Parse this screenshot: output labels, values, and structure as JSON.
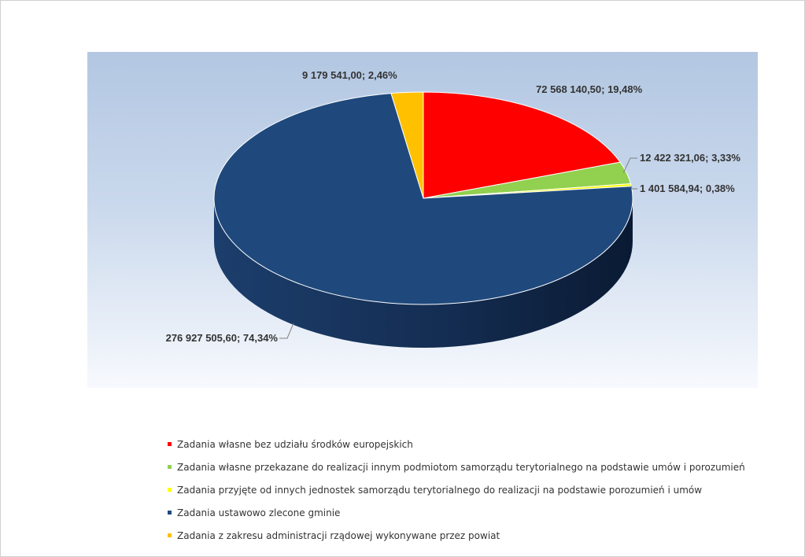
{
  "chart_data": {
    "type": "pie",
    "title": "",
    "style": "3d-pie",
    "legend_position": "bottom",
    "series": [
      {
        "name": "Zadania własne bez udziału środków europejskich",
        "value": 72568140.5,
        "percent": 19.48,
        "label": "72 568 140,50; 19,48%",
        "color": "#ff0000"
      },
      {
        "name": "Zadania własne przekazane do realizacji innym podmiotom samorządu terytorialnego na podstawie umów i porozumień",
        "value": 12422321.06,
        "percent": 3.33,
        "label": "12 422 321,06; 3,33%",
        "color": "#92d050"
      },
      {
        "name": "Zadania przyjęte od innych jednostek samorządu terytorialnego do realizacji na podstawie porozumień i umów",
        "value": 1401584.94,
        "percent": 0.38,
        "label": "1 401 584,94; 0,38%",
        "color": "#ffff00"
      },
      {
        "name": "Zadania ustawowo zlecone gminie",
        "value": 276927505.6,
        "percent": 74.34,
        "label": "276 927 505,60; 74,34%",
        "color": "#1f497d"
      },
      {
        "name": "Zadania z zakresu administracji rządowej wykonywane przez powiat",
        "value": 9179541.0,
        "percent": 2.46,
        "label": "9 179 541,00; 2,46%",
        "color": "#ffc000"
      }
    ]
  }
}
